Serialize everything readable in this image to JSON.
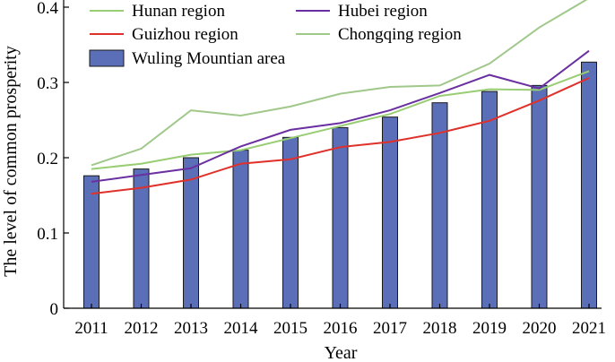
{
  "chart_data": {
    "type": "bar",
    "categories": [
      "2011",
      "2012",
      "2013",
      "2014",
      "2015",
      "2016",
      "2017",
      "2018",
      "2019",
      "2020",
      "2021"
    ],
    "xlabel": "Year",
    "ylabel": "The level of common prosperity",
    "ylim": [
      0,
      0.4
    ],
    "yticks": [
      "0",
      "0.1",
      "0.2",
      "0.3",
      "0.4"
    ],
    "grid": false,
    "legend_position": "top-left",
    "bar_series": {
      "name": "Wuling Mountian area",
      "color": "#5b6eb8",
      "values": [
        0.176,
        0.185,
        0.2,
        0.21,
        0.227,
        0.24,
        0.254,
        0.273,
        0.288,
        0.296,
        0.327
      ]
    },
    "series": [
      {
        "name": "Hunan region",
        "color": "#98cd73",
        "values": [
          0.185,
          0.192,
          0.204,
          0.21,
          0.226,
          0.242,
          0.258,
          0.282,
          0.291,
          0.29,
          0.315
        ]
      },
      {
        "name": "Hubei region",
        "color": "#6a2fa0",
        "values": [
          0.168,
          0.177,
          0.186,
          0.215,
          0.237,
          0.246,
          0.263,
          0.286,
          0.31,
          0.292,
          0.342
        ]
      },
      {
        "name": "Guizhou region",
        "color": "#e0302a",
        "values": [
          0.152,
          0.16,
          0.171,
          0.192,
          0.198,
          0.214,
          0.221,
          0.233,
          0.249,
          0.276,
          0.306
        ]
      },
      {
        "name": "Chongqing region",
        "color": "#a0c88a",
        "values": [
          0.19,
          0.212,
          0.263,
          0.256,
          0.268,
          0.285,
          0.294,
          0.296,
          0.325,
          0.373,
          0.412
        ]
      }
    ]
  }
}
